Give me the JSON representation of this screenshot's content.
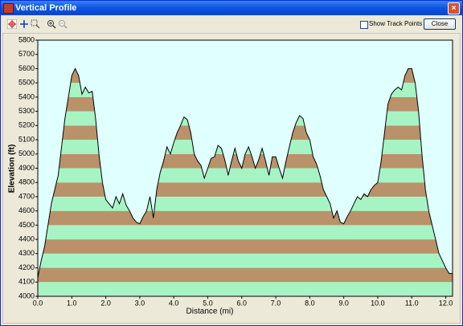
{
  "window_title": "Vertical Profile",
  "show_track_points": "Show Track Points",
  "close_button": "Close",
  "chart_data": {
    "type": "area",
    "xlabel": "Distance   (mi)",
    "ylabel": "Elevation (ft)",
    "x": [
      0.0,
      0.1,
      0.2,
      0.3,
      0.4,
      0.5,
      0.6,
      0.7,
      0.8,
      0.9,
      1.0,
      1.1,
      1.2,
      1.3,
      1.4,
      1.5,
      1.6,
      1.7,
      1.8,
      1.9,
      2.0,
      2.1,
      2.2,
      2.3,
      2.4,
      2.5,
      2.6,
      2.7,
      2.8,
      2.9,
      3.0,
      3.1,
      3.2,
      3.3,
      3.4,
      3.5,
      3.6,
      3.7,
      3.8,
      3.9,
      4.0,
      4.1,
      4.2,
      4.3,
      4.4,
      4.5,
      4.6,
      4.7,
      4.8,
      4.9,
      5.0,
      5.1,
      5.2,
      5.3,
      5.4,
      5.5,
      5.6,
      5.7,
      5.8,
      5.9,
      6.0,
      6.1,
      6.2,
      6.3,
      6.4,
      6.5,
      6.6,
      6.7,
      6.8,
      6.9,
      7.0,
      7.1,
      7.2,
      7.3,
      7.4,
      7.5,
      7.6,
      7.7,
      7.8,
      7.9,
      8.0,
      8.1,
      8.2,
      8.3,
      8.4,
      8.5,
      8.6,
      8.7,
      8.8,
      8.9,
      9.0,
      9.1,
      9.2,
      9.3,
      9.4,
      9.5,
      9.6,
      9.7,
      9.8,
      9.9,
      10.0,
      10.1,
      10.2,
      10.3,
      10.4,
      10.5,
      10.6,
      10.7,
      10.8,
      10.9,
      11.0,
      11.1,
      11.2,
      11.3,
      11.4,
      11.5,
      11.6,
      11.7,
      11.8,
      11.9,
      12.0,
      12.1,
      12.2
    ],
    "values": [
      4130,
      4250,
      4350,
      4500,
      4650,
      4750,
      4850,
      5050,
      5250,
      5400,
      5550,
      5600,
      5550,
      5420,
      5470,
      5430,
      5440,
      5250,
      5000,
      4800,
      4680,
      4650,
      4620,
      4700,
      4650,
      4720,
      4640,
      4600,
      4550,
      4520,
      4510,
      4560,
      4600,
      4700,
      4550,
      4750,
      4870,
      4950,
      5050,
      5000,
      5080,
      5150,
      5200,
      5260,
      5240,
      5150,
      5000,
      4950,
      4920,
      4830,
      4900,
      4970,
      4980,
      5060,
      5040,
      4960,
      4850,
      4950,
      5040,
      4950,
      4900,
      5000,
      5050,
      4980,
      4900,
      4960,
      5040,
      4950,
      4850,
      4980,
      4980,
      4900,
      4830,
      4950,
      5050,
      5150,
      5220,
      5270,
      5250,
      5150,
      5100,
      4980,
      4930,
      4850,
      4750,
      4700,
      4650,
      4550,
      4600,
      4520,
      4510,
      4560,
      4600,
      4650,
      4700,
      4680,
      4720,
      4700,
      4750,
      4780,
      4800,
      4950,
      5150,
      5350,
      5420,
      5450,
      5470,
      5450,
      5550,
      5600,
      5600,
      5500,
      5300,
      5000,
      4750,
      4600,
      4500,
      4400,
      4300,
      4250,
      4200,
      4160,
      4160
    ],
    "xlim": [
      0,
      12.2
    ],
    "xticks": [
      {
        "value": 0,
        "label": "0.0"
      },
      {
        "value": 1,
        "label": "1.0"
      },
      {
        "value": 2,
        "label": "2.0"
      },
      {
        "value": 3,
        "label": "3.0"
      },
      {
        "value": 4,
        "label": "4.0"
      },
      {
        "value": 5,
        "label": "5.0"
      },
      {
        "value": 6,
        "label": "6.0"
      },
      {
        "value": 7,
        "label": "7.0"
      },
      {
        "value": 8,
        "label": "8.0"
      },
      {
        "value": 9,
        "label": "9.0"
      },
      {
        "value": 10,
        "label": "10.0"
      },
      {
        "value": 11,
        "label": "11.0"
      },
      {
        "value": 12,
        "label": "12.0"
      }
    ],
    "ylim": [
      4000,
      5800
    ],
    "yticks": [
      4000,
      4100,
      4200,
      4300,
      4400,
      4500,
      4600,
      4700,
      4800,
      4900,
      5000,
      5100,
      5200,
      5300,
      5400,
      5500,
      5600,
      5700,
      5800
    ],
    "stripe_colors": [
      "#a6f4c4",
      "#b9926a"
    ],
    "outline_color": "#000000",
    "background": "#e0ffff"
  }
}
